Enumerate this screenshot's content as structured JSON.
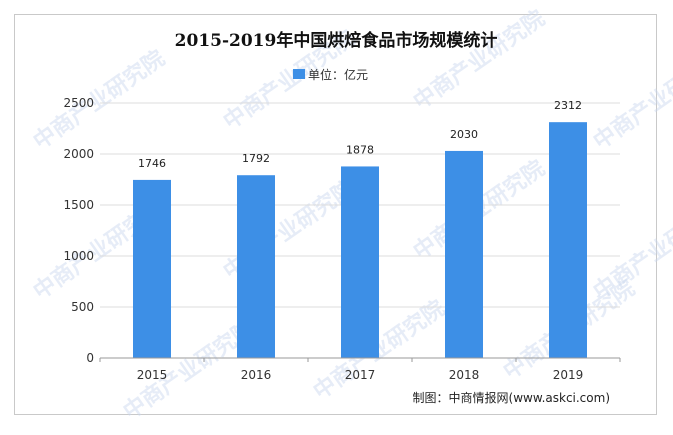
{
  "chart_data": {
    "type": "bar",
    "title": "2015-2019年中国烘焙食品市场规模统计",
    "legend": {
      "label": "单位：亿元",
      "position": "top-center"
    },
    "categories": [
      "2015",
      "2016",
      "2017",
      "2018",
      "2019"
    ],
    "values": [
      1746,
      1792,
      1878,
      2030,
      2312
    ],
    "data_labels": [
      "1746",
      "1792",
      "1878",
      "2030",
      "2312"
    ],
    "y_ticks": [
      "0",
      "500",
      "1000",
      "1500",
      "2000",
      "2500"
    ],
    "ylim": [
      0,
      2500
    ],
    "grid": true,
    "bar_color": "#3d8fe6"
  },
  "source": "制图：中商情报网(www.askci.com)",
  "watermark": "中商产业研究院"
}
